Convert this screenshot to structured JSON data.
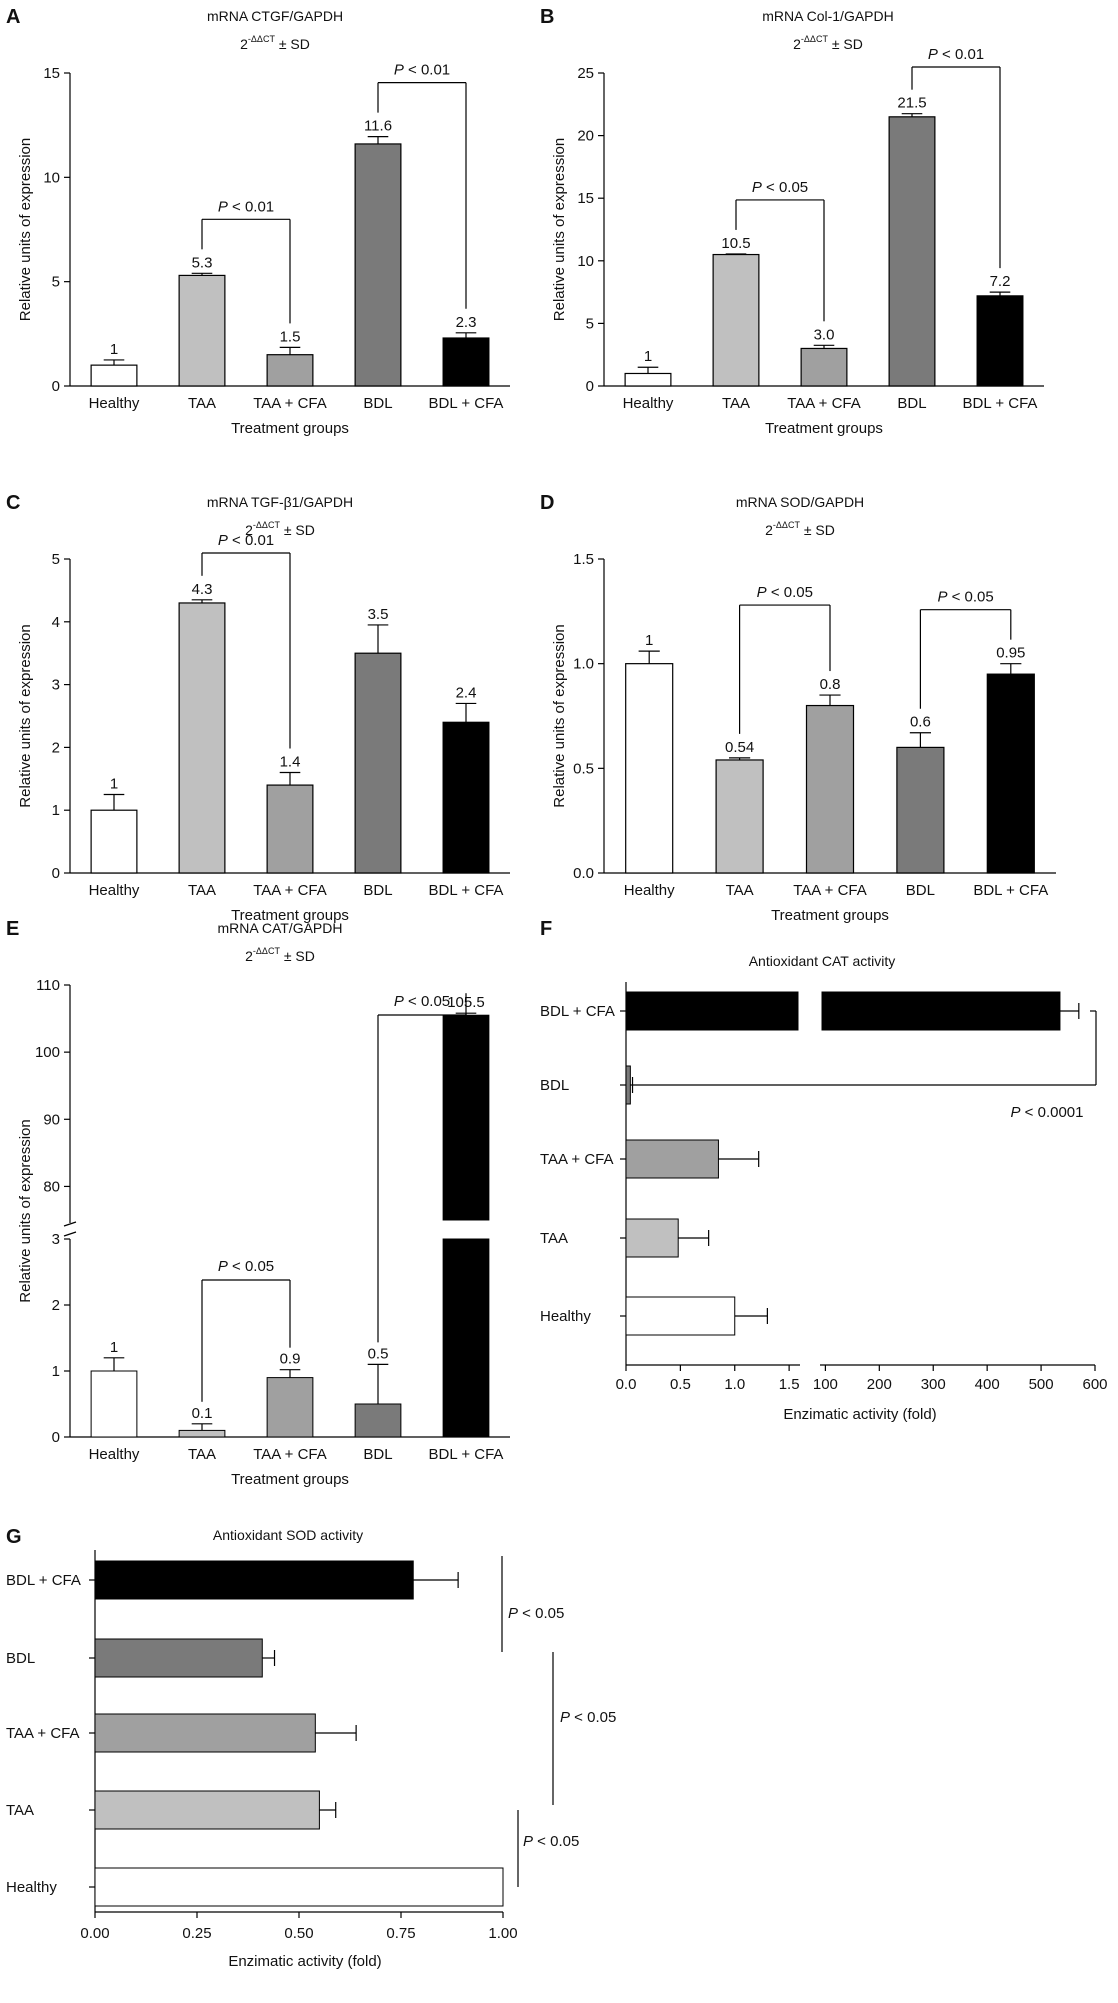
{
  "chart_data": [
    {
      "panel": "A",
      "type": "bar",
      "title": "mRNA CTGF/GAPDH",
      "subtitle": "2^-ΔΔCT ± SD",
      "xlabel": "Treatment groups",
      "ylabel": "Relative units of expression",
      "categories": [
        "Healthy",
        "TAA",
        "TAA + CFA",
        "BDL",
        "BDL + CFA"
      ],
      "values": [
        1,
        5.3,
        1.5,
        11.6,
        2.3
      ],
      "errors": [
        0.25,
        0.1,
        0.35,
        0.35,
        0.25
      ],
      "labels": [
        "1",
        "5.3",
        "1.5",
        "11.6",
        "2.3"
      ],
      "ylim": [
        0,
        15
      ],
      "yticks": [
        0,
        5,
        10,
        15
      ],
      "comparisons": [
        {
          "from": "TAA",
          "to": "TAA + CFA",
          "label": "P < 0.01"
        },
        {
          "from": "BDL",
          "to": "BDL + CFA",
          "label": "P < 0.01"
        }
      ]
    },
    {
      "panel": "B",
      "type": "bar",
      "title": "mRNA Col-1/GAPDH",
      "subtitle": "2^-ΔΔCT ± SD",
      "xlabel": "Treatment groups",
      "ylabel": "Relative units of expression",
      "categories": [
        "Healthy",
        "TAA",
        "TAA + CFA",
        "BDL",
        "BDL + CFA"
      ],
      "values": [
        1,
        10.5,
        3.0,
        21.5,
        7.2
      ],
      "errors": [
        0.5,
        0.05,
        0.25,
        0.25,
        0.3
      ],
      "labels": [
        "1",
        "10.5",
        "3.0",
        "21.5",
        "7.2"
      ],
      "ylim": [
        0,
        25
      ],
      "yticks": [
        0,
        5,
        10,
        15,
        20,
        25
      ],
      "comparisons": [
        {
          "from": "TAA",
          "to": "TAA + CFA",
          "label": "P < 0.05"
        },
        {
          "from": "BDL",
          "to": "BDL + CFA",
          "label": "P < 0.01"
        }
      ]
    },
    {
      "panel": "C",
      "type": "bar",
      "title": "mRNA TGF-β1/GAPDH",
      "subtitle": "2^-ΔΔCT ± SD",
      "xlabel": "Treatment groups",
      "ylabel": "Relative units of expression",
      "categories": [
        "Healthy",
        "TAA",
        "TAA + CFA",
        "BDL",
        "BDL + CFA"
      ],
      "values": [
        1,
        4.3,
        1.4,
        3.5,
        2.4
      ],
      "errors": [
        0.25,
        0.05,
        0.2,
        0.45,
        0.3
      ],
      "labels": [
        "1",
        "4.3",
        "1.4",
        "3.5",
        "2.4"
      ],
      "ylim": [
        0,
        5
      ],
      "yticks": [
        0,
        1,
        2,
        3,
        4,
        5
      ],
      "comparisons": [
        {
          "from": "TAA",
          "to": "TAA + CFA",
          "label": "P < 0.01"
        }
      ]
    },
    {
      "panel": "D",
      "type": "bar",
      "title": "mRNA SOD/GAPDH",
      "subtitle": "2^-ΔΔCT ± SD",
      "xlabel": "Treatment groups",
      "ylabel": "Relative units of expression",
      "categories": [
        "Healthy",
        "TAA",
        "TAA + CFA",
        "BDL",
        "BDL + CFA"
      ],
      "values": [
        1,
        0.54,
        0.8,
        0.6,
        0.95
      ],
      "errors": [
        0.06,
        0.01,
        0.05,
        0.07,
        0.05
      ],
      "labels": [
        "1",
        "0.54",
        "0.8",
        "0.6",
        "0.95"
      ],
      "ylim": [
        0,
        1.5
      ],
      "yticks": [
        0.0,
        0.5,
        1.0,
        1.5
      ],
      "comparisons": [
        {
          "from": "TAA",
          "to": "TAA + CFA",
          "label": "P < 0.05"
        },
        {
          "from": "BDL",
          "to": "BDL + CFA",
          "label": "P < 0.05"
        }
      ]
    },
    {
      "panel": "E",
      "type": "bar",
      "title": "mRNA CAT/GAPDH",
      "subtitle": "2^-ΔΔCT ± SD",
      "xlabel": "Treatment groups",
      "ylabel": "Relative units of expression",
      "categories": [
        "Healthy",
        "TAA",
        "TAA + CFA",
        "BDL",
        "BDL + CFA"
      ],
      "values": [
        1,
        0.1,
        0.9,
        0.5,
        105.5
      ],
      "errors": [
        0.2,
        0.1,
        0.12,
        0.6,
        0.3
      ],
      "labels": [
        "1",
        "0.1",
        "0.9",
        "0.5",
        "105.5"
      ],
      "axis_break": {
        "lower": [
          0,
          3
        ],
        "upper": [
          75,
          110
        ]
      },
      "yticks_lower": [
        0,
        1,
        2,
        3
      ],
      "yticks_upper": [
        80,
        90,
        100,
        110
      ],
      "comparisons": [
        {
          "from": "TAA",
          "to": "TAA + CFA",
          "label": "P < 0.05"
        },
        {
          "from": "BDL",
          "to": "BDL + CFA",
          "label": "P < 0.05"
        }
      ]
    },
    {
      "panel": "F",
      "type": "bar",
      "orientation": "horizontal",
      "title": "Antioxidant CAT activity",
      "xlabel": "Enzimatic activity (fold)",
      "categories": [
        "BDL + CFA",
        "BDL",
        "TAA + CFA",
        "TAA",
        "Healthy"
      ],
      "values": [
        535,
        0.04,
        0.85,
        0.48,
        1.0
      ],
      "errors": [
        35,
        0.02,
        0.37,
        0.28,
        0.3
      ],
      "axis_break": {
        "left": [
          0,
          1.6
        ],
        "right": [
          90,
          600
        ]
      },
      "xticks_left": [
        "0.0",
        "0.5",
        "1.0",
        "1.5"
      ],
      "xticks_right": [
        "100",
        "200",
        "300",
        "400",
        "500",
        "600"
      ],
      "comparisons": [
        {
          "from": "BDL",
          "to": "BDL + CFA",
          "label": "P < 0.0001"
        }
      ]
    },
    {
      "panel": "G",
      "type": "bar",
      "orientation": "horizontal",
      "title": "Antioxidant SOD activity",
      "xlabel": "Enzimatic activity (fold)",
      "categories": [
        "BDL + CFA",
        "BDL",
        "TAA + CFA",
        "TAA",
        "Healthy"
      ],
      "values": [
        0.78,
        0.41,
        0.54,
        0.55,
        1.0
      ],
      "errors": [
        0.11,
        0.03,
        0.1,
        0.04,
        0.0
      ],
      "xlim": [
        0,
        1.0
      ],
      "xticks": [
        "0.00",
        "0.25",
        "0.50",
        "0.75",
        "1.00"
      ],
      "comparisons": [
        {
          "from": "BDL",
          "to": "BDL + CFA",
          "label": "P < 0.05"
        },
        {
          "from": "TAA",
          "to": "BDL",
          "label": "P < 0.05"
        },
        {
          "from": "Healthy",
          "to": "TAA",
          "label": "P < 0.05"
        }
      ]
    }
  ],
  "colors": {
    "Healthy": "#ffffff",
    "TAA": "#c0c0c0",
    "TAA + CFA": "#a0a0a0",
    "BDL": "#7a7a7a",
    "BDL + CFA": "#000000"
  }
}
